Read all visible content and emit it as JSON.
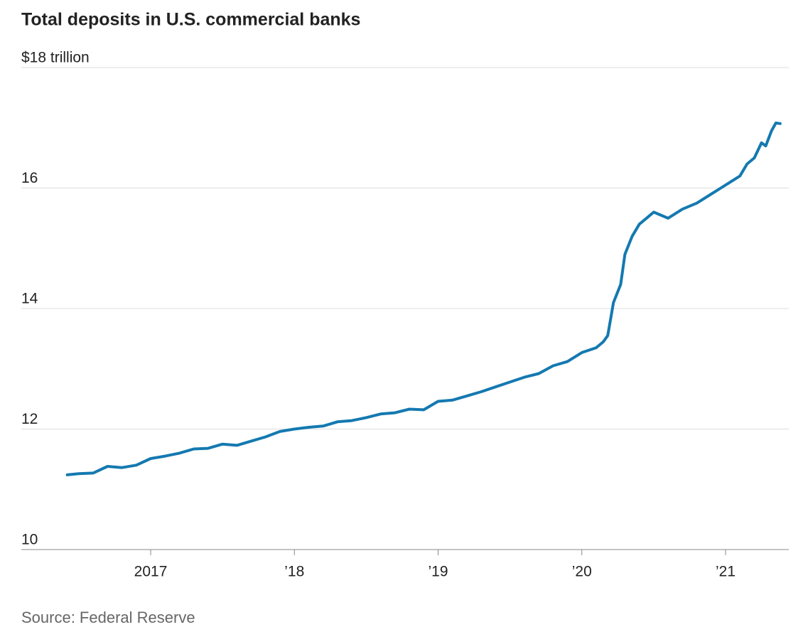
{
  "chart_data": {
    "type": "line",
    "title": "Total deposits in U.S. commercial banks",
    "source": "Source: Federal Reserve",
    "x": [
      2016.42,
      2016.5,
      2016.6,
      2016.7,
      2016.8,
      2016.9,
      2017.0,
      2017.1,
      2017.2,
      2017.3,
      2017.4,
      2017.5,
      2017.6,
      2017.7,
      2017.8,
      2017.9,
      2018.0,
      2018.1,
      2018.2,
      2018.3,
      2018.4,
      2018.5,
      2018.6,
      2018.7,
      2018.8,
      2018.9,
      2019.0,
      2019.1,
      2019.2,
      2019.3,
      2019.4,
      2019.5,
      2019.6,
      2019.7,
      2019.8,
      2019.9,
      2020.0,
      2020.1,
      2020.15,
      2020.18,
      2020.22,
      2020.27,
      2020.3,
      2020.35,
      2020.4,
      2020.45,
      2020.5,
      2020.55,
      2020.6,
      2020.7,
      2020.8,
      2020.9,
      2021.0,
      2021.1,
      2021.15,
      2021.2,
      2021.25,
      2021.28,
      2021.32,
      2021.35,
      2021.38
    ],
    "series": [
      {
        "color": "#1479b0",
        "values": [
          11.24,
          11.26,
          11.27,
          11.38,
          11.36,
          11.4,
          11.51,
          11.55,
          11.6,
          11.67,
          11.68,
          11.75,
          11.73,
          11.8,
          11.87,
          11.96,
          12.0,
          12.03,
          12.05,
          12.12,
          12.14,
          12.19,
          12.25,
          12.27,
          12.33,
          12.32,
          12.46,
          12.48,
          12.55,
          12.62,
          12.7,
          12.78,
          12.86,
          12.92,
          13.05,
          13.12,
          13.27,
          13.35,
          13.45,
          13.55,
          14.1,
          14.4,
          14.9,
          15.2,
          15.4,
          15.5,
          15.6,
          15.55,
          15.5,
          15.65,
          15.75,
          15.9,
          16.05,
          16.2,
          16.4,
          16.5,
          16.75,
          16.7,
          16.95,
          17.08,
          17.07
        ]
      }
    ],
    "xlim": [
      2016.1,
      2021.44
    ],
    "xticks": [
      2017,
      {
        "value": 2018,
        "label": "’18"
      },
      {
        "value": 2019,
        "label": "’19"
      },
      {
        "value": 2020,
        "label": "’20"
      },
      {
        "value": 2021,
        "label": "’21"
      }
    ],
    "ylim": [
      10,
      18
    ],
    "yticks": [
      10,
      12,
      14,
      16,
      {
        "value": 18,
        "label": "$18 trillion"
      }
    ],
    "grid": true
  }
}
